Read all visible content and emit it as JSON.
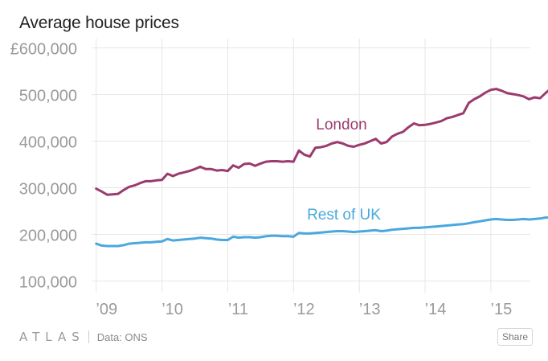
{
  "title": "Average house prices",
  "footer": {
    "brand": "ATLAS",
    "source": "Data: ONS",
    "share_label": "Share"
  },
  "colors": {
    "london": "#9b3b6d",
    "rest_of_uk": "#4aa8dd",
    "grid": "#e6e6e6",
    "ticks": "#9a9a9a"
  },
  "chart_data": {
    "type": "line",
    "title": "Average house prices",
    "xlabel": "",
    "ylabel": "",
    "x_ticks": [
      {
        "label": "’09",
        "value": 2009
      },
      {
        "label": "’10",
        "value": 2010
      },
      {
        "label": "’11",
        "value": 2011
      },
      {
        "label": "’12",
        "value": 2012
      },
      {
        "label": "’13",
        "value": 2013
      },
      {
        "label": "’14",
        "value": 2014
      },
      {
        "label": "’15",
        "value": 2015
      }
    ],
    "y_ticks": [
      {
        "label": "£600,000",
        "value": 600000
      },
      {
        "label": "500,000",
        "value": 500000
      },
      {
        "label": "400,000",
        "value": 400000
      },
      {
        "label": "300,000",
        "value": 300000
      },
      {
        "label": "200,000",
        "value": 200000
      },
      {
        "label": "100,000",
        "value": 100000
      }
    ],
    "xlim": [
      2008.93,
      2015.6
    ],
    "ylim": [
      75000,
      620000
    ],
    "x_start": 2009.0,
    "x_step": 0.0833,
    "series": [
      {
        "name": "London",
        "label": "London",
        "color": "#9b3b6d",
        "values": [
          298000,
          292000,
          285000,
          286000,
          287000,
          295000,
          302000,
          305000,
          310000,
          314000,
          314000,
          316000,
          317000,
          330000,
          325000,
          330000,
          333000,
          336000,
          340000,
          345000,
          340000,
          340000,
          337000,
          338000,
          336000,
          348000,
          343000,
          351000,
          352000,
          347000,
          352000,
          356000,
          357000,
          357000,
          356000,
          357000,
          356000,
          380000,
          371000,
          367000,
          386000,
          387000,
          390000,
          395000,
          398000,
          395000,
          390000,
          388000,
          392000,
          395000,
          400000,
          405000,
          395000,
          398000,
          410000,
          416000,
          420000,
          430000,
          438000,
          434000,
          435000,
          437000,
          440000,
          443000,
          449000,
          452000,
          456000,
          460000,
          482000,
          490000,
          496000,
          504000,
          510000,
          512000,
          508000,
          503000,
          501000,
          499000,
          496000,
          490000,
          494000,
          492000,
          503000,
          513000
        ]
      },
      {
        "name": "Rest of UK",
        "label": "Rest of UK",
        "color": "#4aa8dd",
        "values": [
          180000,
          176000,
          175000,
          175000,
          175000,
          177000,
          180000,
          181000,
          182000,
          183000,
          183000,
          184000,
          185000,
          190000,
          187000,
          188000,
          189000,
          190000,
          191000,
          193000,
          192000,
          191000,
          189000,
          188000,
          188000,
          195000,
          193000,
          194000,
          194000,
          193000,
          194000,
          196000,
          197000,
          197000,
          196000,
          196000,
          195000,
          203000,
          202000,
          202000,
          203000,
          204000,
          205000,
          206000,
          207000,
          207000,
          206000,
          205000,
          206000,
          207000,
          208000,
          209000,
          207000,
          208000,
          210000,
          211000,
          212000,
          213000,
          214000,
          214000,
          215000,
          216000,
          217000,
          218000,
          219000,
          220000,
          221000,
          222000,
          224000,
          226000,
          228000,
          230000,
          232000,
          233000,
          232000,
          231000,
          231000,
          232000,
          233000,
          232000,
          233000,
          234000,
          236000,
          236000
        ]
      }
    ],
    "legend": "inline-labels",
    "grid": true
  }
}
